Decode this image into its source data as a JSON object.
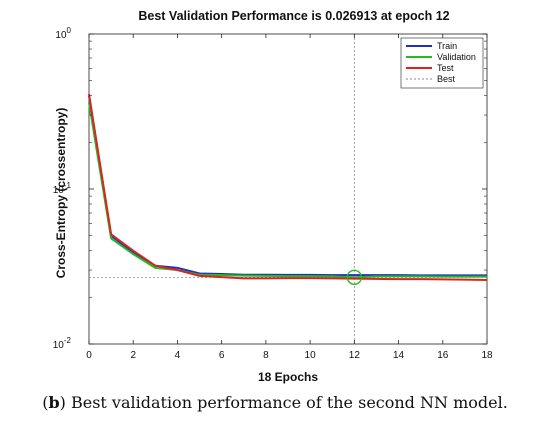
{
  "chart_data": {
    "type": "line",
    "title": "Best Validation Performance is 0.026913 at epoch 12",
    "xlabel": "18 Epochs",
    "ylabel": "Cross-Entropy  (crossentropy)",
    "xlim": [
      0,
      18
    ],
    "ylim": [
      0.01,
      1
    ],
    "yscale": "log",
    "xticks": [
      0,
      2,
      4,
      6,
      8,
      10,
      12,
      14,
      16,
      18
    ],
    "yticks": [
      {
        "value": 1,
        "label_base": "10",
        "label_exp": "0"
      },
      {
        "value": 0.1,
        "label_base": "10",
        "label_exp": "-1"
      },
      {
        "value": 0.01,
        "label_base": "10",
        "label_exp": "-2"
      }
    ],
    "grid": false,
    "legend_position": "top-right",
    "x": [
      0,
      1,
      2,
      3,
      4,
      5,
      6,
      7,
      8,
      9,
      10,
      11,
      12,
      13,
      14,
      15,
      16,
      17,
      18
    ],
    "series": [
      {
        "name": "Train",
        "color": "#1f2fbf",
        "values": [
          0.4,
          0.05,
          0.039,
          0.032,
          0.031,
          0.0285,
          0.0283,
          0.028,
          0.028,
          0.0279,
          0.0279,
          0.0278,
          0.0278,
          0.0278,
          0.0278,
          0.0277,
          0.0277,
          0.0277,
          0.0277
        ]
      },
      {
        "name": "Validation",
        "color": "#22bb22",
        "values": [
          0.36,
          0.048,
          0.038,
          0.031,
          0.03,
          0.028,
          0.0278,
          0.0276,
          0.0275,
          0.0274,
          0.0274,
          0.0273,
          0.026913,
          0.0273,
          0.0273,
          0.0273,
          0.0272,
          0.0272,
          0.0272
        ]
      },
      {
        "name": "Test",
        "color": "#dd2222",
        "values": [
          0.41,
          0.051,
          0.04,
          0.032,
          0.03,
          0.0275,
          0.027,
          0.0265,
          0.0265,
          0.0266,
          0.0266,
          0.0265,
          0.0264,
          0.0263,
          0.0262,
          0.0262,
          0.0261,
          0.026,
          0.0259
        ]
      }
    ],
    "best": {
      "name": "Best",
      "epoch": 12,
      "value": 0.026913,
      "color": "#888888"
    }
  },
  "caption": {
    "label": "b",
    "text": " Best validation performance of the second NN model."
  }
}
